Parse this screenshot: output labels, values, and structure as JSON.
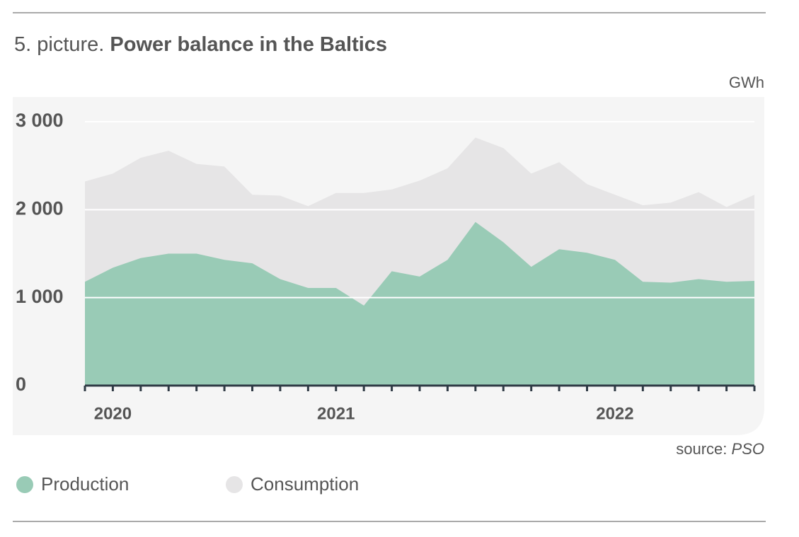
{
  "chart_data": {
    "type": "area",
    "title_number": "5. picture.",
    "title": "Power balance in the Baltics",
    "unit": "GWh",
    "source_label": "source:",
    "source": "PSO",
    "categories": [
      null,
      "2020",
      null,
      null,
      null,
      null,
      null,
      null,
      null,
      "2021",
      null,
      null,
      null,
      null,
      null,
      null,
      null,
      null,
      null,
      "2022",
      null,
      null,
      null,
      null,
      null
    ],
    "series": [
      {
        "name": "Consumption",
        "color": "#e6e5e6",
        "values": [
          2320,
          2410,
          2590,
          2670,
          2520,
          2490,
          2170,
          2160,
          2040,
          2190,
          2190,
          2230,
          2330,
          2470,
          2820,
          2700,
          2410,
          2540,
          2290,
          2170,
          2050,
          2080,
          2200,
          2030,
          2170
        ]
      },
      {
        "name": "Production",
        "color": "#99cbb6",
        "values": [
          1180,
          1340,
          1450,
          1500,
          1500,
          1430,
          1390,
          1210,
          1110,
          1110,
          910,
          1300,
          1240,
          1430,
          1860,
          1630,
          1350,
          1550,
          1510,
          1430,
          1180,
          1170,
          1210,
          1180,
          1190
        ]
      }
    ],
    "legend_order": [
      1,
      0
    ],
    "ylim": [
      0,
      3000
    ],
    "yticks": [
      0,
      {
        "value": 1000,
        "label": "1 000"
      },
      {
        "value": 2000,
        "label": "2 000"
      },
      {
        "value": 3000,
        "label": "3 000"
      }
    ],
    "grid": true
  }
}
